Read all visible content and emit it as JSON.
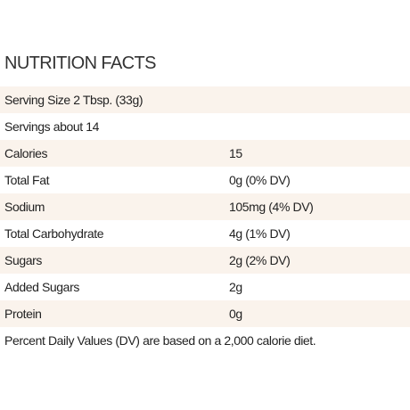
{
  "header": {
    "title": "NUTRITION FACTS"
  },
  "table": {
    "rows": [
      [
        "Serving Size 2 Tbsp. (33g)"
      ],
      [
        "Servings about 14"
      ],
      [
        "Calories",
        "15"
      ],
      [
        "Total Fat",
        "0g (0% DV)"
      ],
      [
        "Sodium",
        "105mg (4% DV)"
      ],
      [
        "Total Carbohydrate",
        "4g (1% DV)"
      ],
      [
        "Sugars",
        "2g (2% DV)"
      ],
      [
        "Added Sugars",
        "2g"
      ],
      [
        "Protein",
        "0g"
      ],
      [
        "Percent Daily Values (DV) are based on a 2,000 calorie diet."
      ]
    ]
  }
}
